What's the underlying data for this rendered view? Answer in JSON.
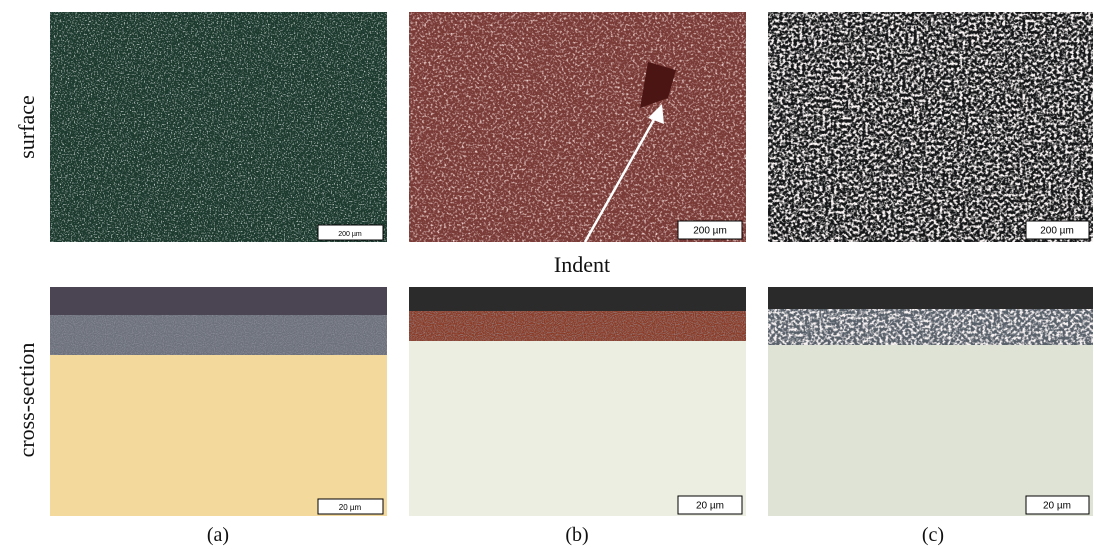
{
  "row_labels": [
    "surface",
    "cross-section"
  ],
  "annotation": "Indent",
  "panels": [
    {
      "label": "(a)",
      "surface_scale": "200 µm",
      "cross_section_scale": "20 µm"
    },
    {
      "label": "(b)",
      "surface_scale": "200 µm",
      "cross_section_scale": "20 µm"
    },
    {
      "label": "(c)",
      "surface_scale": "200 µm",
      "cross_section_scale": "20 µm"
    }
  ]
}
